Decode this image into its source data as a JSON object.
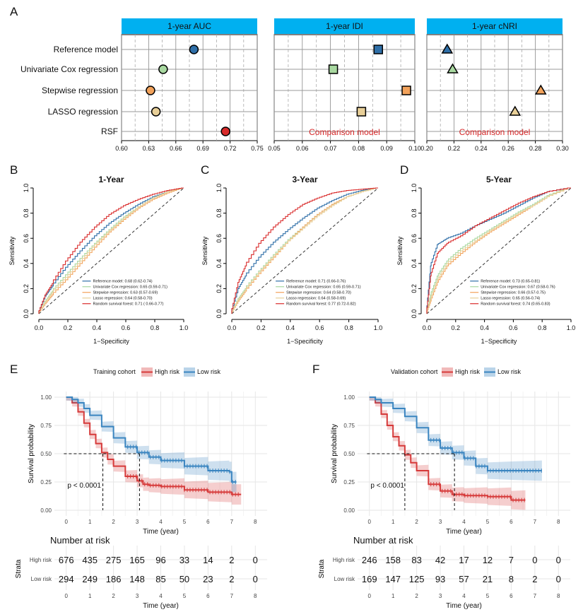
{
  "panel_letters": [
    "A",
    "B",
    "C",
    "D",
    "E",
    "F"
  ],
  "colors": {
    "reference": "#2f6fa8",
    "cox": "#a8d8a0",
    "stepwise": "#f2a25b",
    "lasso": "#e8cf98",
    "rsf": "#d92b2b",
    "header": "#00b0f0",
    "high_risk": "#d63a3a",
    "low_risk": "#3a85c0",
    "comparison_text": "#d62728"
  },
  "comparison_label": "Comparison model",
  "chart_data": [
    {
      "type": "scatter",
      "title": "1-year AUC",
      "categories": [
        "Reference model",
        "Univariate Cox regression",
        "Stepwise regression",
        "LASSO regression",
        "RSF"
      ],
      "values": [
        0.68,
        0.646,
        0.632,
        0.638,
        0.715
      ],
      "marker": "circle",
      "xlim": [
        0.6,
        0.75
      ],
      "xticks": [
        "0.60",
        "0.63",
        "0.66",
        "0.69",
        "0.72",
        "0.75"
      ]
    },
    {
      "type": "scatter",
      "title": "1-year IDI",
      "categories": [
        "Reference model",
        "Univariate Cox regression",
        "Stepwise regression",
        "LASSO regression",
        "RSF"
      ],
      "values": [
        0.087,
        0.071,
        0.097,
        0.081,
        null
      ],
      "marker": "square",
      "xlim": [
        0.05,
        0.1
      ],
      "xticks": [
        "0.05",
        "0.06",
        "0.07",
        "0.08",
        "0.09",
        "0.10"
      ],
      "annotation": "Comparison model"
    },
    {
      "type": "scatter",
      "title": "1-year cNRI",
      "categories": [
        "Reference model",
        "Univariate Cox regression",
        "Stepwise regression",
        "LASSO regression",
        "RSF"
      ],
      "values": [
        0.215,
        0.219,
        0.284,
        0.265,
        null
      ],
      "marker": "triangle",
      "xlim": [
        0.2,
        0.3
      ],
      "xticks": [
        "0.20",
        "0.22",
        "0.24",
        "0.26",
        "0.28",
        "0.30"
      ],
      "annotation": "Comparison model"
    },
    {
      "type": "line",
      "title": "1-Year",
      "xlabel": "1−Specificity",
      "ylabel": "Sensitivity",
      "xlim": [
        0,
        1
      ],
      "ylim": [
        0,
        1
      ],
      "ticks": [
        "0.0",
        "0.2",
        "0.4",
        "0.6",
        "0.8",
        "1.0"
      ],
      "legend": [
        "Reference model: 0.68 (0.62-0.74)",
        "Univariate Cox regression: 0.65 (0.59-0.71)",
        "Stepwise regression: 0.63 (0.57-0.69)",
        "Lasso regression: 0.64 (0.58-0.70)",
        "Random survival forest: 0.71 ( 0.66-0.77)"
      ],
      "series": [
        {
          "name": "Reference model",
          "x": [
            0,
            0.05,
            0.1,
            0.2,
            0.3,
            0.4,
            0.5,
            0.6,
            0.7,
            0.8,
            0.9,
            1.0
          ],
          "y": [
            0,
            0.14,
            0.22,
            0.37,
            0.5,
            0.62,
            0.72,
            0.8,
            0.87,
            0.93,
            0.97,
            1.0
          ]
        },
        {
          "name": "Univariate Cox regression",
          "x": [
            0,
            0.05,
            0.1,
            0.2,
            0.3,
            0.4,
            0.5,
            0.6,
            0.7,
            0.8,
            0.9,
            1.0
          ],
          "y": [
            0,
            0.1,
            0.18,
            0.31,
            0.44,
            0.56,
            0.67,
            0.77,
            0.85,
            0.92,
            0.97,
            1.0
          ]
        },
        {
          "name": "Stepwise regression",
          "x": [
            0,
            0.05,
            0.1,
            0.2,
            0.3,
            0.4,
            0.5,
            0.6,
            0.7,
            0.8,
            0.9,
            1.0
          ],
          "y": [
            0,
            0.08,
            0.15,
            0.27,
            0.4,
            0.53,
            0.65,
            0.75,
            0.84,
            0.91,
            0.96,
            1.0
          ]
        },
        {
          "name": "Lasso regression",
          "x": [
            0,
            0.05,
            0.1,
            0.2,
            0.3,
            0.4,
            0.5,
            0.6,
            0.7,
            0.8,
            0.9,
            1.0
          ],
          "y": [
            0,
            0.09,
            0.17,
            0.29,
            0.42,
            0.55,
            0.66,
            0.76,
            0.85,
            0.92,
            0.97,
            1.0
          ]
        },
        {
          "name": "Random survival forest",
          "x": [
            0,
            0.05,
            0.1,
            0.2,
            0.3,
            0.4,
            0.5,
            0.6,
            0.7,
            0.8,
            0.9,
            1.0
          ],
          "y": [
            0,
            0.15,
            0.24,
            0.42,
            0.57,
            0.69,
            0.79,
            0.86,
            0.91,
            0.95,
            0.98,
            1.0
          ]
        }
      ]
    },
    {
      "type": "line",
      "title": "3-Year",
      "xlabel": "1−Specificity",
      "ylabel": "Sensitivity",
      "xlim": [
        0,
        1
      ],
      "ylim": [
        0,
        1
      ],
      "ticks": [
        "0.0",
        "0.2",
        "0.4",
        "0.6",
        "0.8",
        "1.0"
      ],
      "legend": [
        "Reference model: 0.71 (0.66-0.76)",
        "Univariate Cox regression: 0.65 (0.59-0.71)",
        "Stepwise regression: 0.64 (0.58-0.70)",
        "Lasso regression: 0.64 (0.58-0.69)",
        "Random survival forest: 0.77 (0.72-0.82)"
      ],
      "series": [
        {
          "name": "Reference model",
          "x": [
            0,
            0.05,
            0.1,
            0.2,
            0.3,
            0.4,
            0.5,
            0.6,
            0.7,
            0.8,
            0.9,
            1.0
          ],
          "y": [
            0,
            0.2,
            0.3,
            0.45,
            0.57,
            0.67,
            0.76,
            0.84,
            0.9,
            0.95,
            0.98,
            1.0
          ]
        },
        {
          "name": "Univariate Cox regression",
          "x": [
            0,
            0.05,
            0.1,
            0.2,
            0.3,
            0.4,
            0.5,
            0.6,
            0.7,
            0.8,
            0.9,
            1.0
          ],
          "y": [
            0,
            0.12,
            0.2,
            0.34,
            0.47,
            0.59,
            0.69,
            0.79,
            0.87,
            0.93,
            0.97,
            1.0
          ]
        },
        {
          "name": "Stepwise regression",
          "x": [
            0,
            0.05,
            0.1,
            0.2,
            0.3,
            0.4,
            0.5,
            0.6,
            0.7,
            0.8,
            0.9,
            1.0
          ],
          "y": [
            0,
            0.1,
            0.18,
            0.32,
            0.45,
            0.58,
            0.69,
            0.79,
            0.87,
            0.93,
            0.97,
            1.0
          ]
        },
        {
          "name": "Lasso regression",
          "x": [
            0,
            0.05,
            0.1,
            0.2,
            0.3,
            0.4,
            0.5,
            0.6,
            0.7,
            0.8,
            0.9,
            1.0
          ],
          "y": [
            0,
            0.11,
            0.19,
            0.33,
            0.46,
            0.58,
            0.68,
            0.78,
            0.86,
            0.93,
            0.97,
            1.0
          ]
        },
        {
          "name": "Random survival forest",
          "x": [
            0,
            0.05,
            0.1,
            0.2,
            0.3,
            0.4,
            0.5,
            0.6,
            0.7,
            0.8,
            0.9,
            1.0
          ],
          "y": [
            0,
            0.25,
            0.38,
            0.56,
            0.69,
            0.79,
            0.87,
            0.92,
            0.96,
            0.98,
            0.99,
            1.0
          ]
        }
      ]
    },
    {
      "type": "line",
      "title": "5-Year",
      "xlabel": "1−Specificity",
      "ylabel": "Sensitivity",
      "xlim": [
        0,
        1
      ],
      "ylim": [
        0,
        1
      ],
      "ticks": [
        "0.0",
        "0.2",
        "0.4",
        "0.6",
        "0.8",
        "1.0"
      ],
      "legend": [
        "Reference model: 0.73 (0.65-0.81)",
        "Univariate Cox regression: 0.67 (0.58-0.76)",
        "Stepwise regression: 0.66 (0.57-0.75)",
        "Lasso regression: 0.65 (0.56-0.74)",
        "Random survival forest: 0.74 (0.65-0.83)"
      ],
      "series": [
        {
          "name": "Reference model",
          "x": [
            0,
            0.03,
            0.08,
            0.15,
            0.25,
            0.35,
            0.45,
            0.55,
            0.65,
            0.75,
            0.85,
            1.0
          ],
          "y": [
            0,
            0.38,
            0.55,
            0.6,
            0.64,
            0.7,
            0.75,
            0.8,
            0.86,
            0.92,
            0.97,
            1.0
          ]
        },
        {
          "name": "Univariate Cox regression",
          "x": [
            0,
            0.03,
            0.08,
            0.15,
            0.25,
            0.35,
            0.45,
            0.55,
            0.65,
            0.75,
            0.85,
            1.0
          ],
          "y": [
            0,
            0.15,
            0.3,
            0.42,
            0.52,
            0.6,
            0.67,
            0.74,
            0.81,
            0.87,
            0.94,
            1.0
          ]
        },
        {
          "name": "Stepwise regression",
          "x": [
            0,
            0.03,
            0.08,
            0.15,
            0.25,
            0.35,
            0.45,
            0.55,
            0.65,
            0.75,
            0.85,
            1.0
          ],
          "y": [
            0,
            0.1,
            0.25,
            0.38,
            0.48,
            0.57,
            0.65,
            0.72,
            0.79,
            0.86,
            0.93,
            1.0
          ]
        },
        {
          "name": "Lasso regression",
          "x": [
            0,
            0.03,
            0.08,
            0.15,
            0.25,
            0.35,
            0.45,
            0.55,
            0.65,
            0.75,
            0.85,
            1.0
          ],
          "y": [
            0,
            0.12,
            0.27,
            0.4,
            0.5,
            0.58,
            0.66,
            0.73,
            0.8,
            0.86,
            0.93,
            1.0
          ]
        },
        {
          "name": "Random survival forest",
          "x": [
            0,
            0.03,
            0.08,
            0.15,
            0.25,
            0.35,
            0.45,
            0.55,
            0.65,
            0.75,
            0.85,
            1.0
          ],
          "y": [
            0,
            0.3,
            0.48,
            0.56,
            0.62,
            0.7,
            0.76,
            0.82,
            0.88,
            0.93,
            0.97,
            1.0
          ]
        }
      ]
    },
    {
      "type": "line",
      "title": "Training cohort",
      "xlabel": "Time (year)",
      "ylabel": "Survival probability",
      "xlim": [
        -0.5,
        8.5
      ],
      "ylim": [
        0,
        1
      ],
      "xticks": [
        "0",
        "1",
        "2",
        "3",
        "4",
        "5",
        "6",
        "7",
        "8"
      ],
      "yticks": [
        "0.00",
        "0.25",
        "0.50",
        "0.75",
        "1.00"
      ],
      "legend_title": "Training cohort",
      "legend": [
        "High risk",
        "Low risk"
      ],
      "pvalue": "p < 0.0001",
      "medians": [
        1.55,
        3.1
      ],
      "series": [
        {
          "name": "High risk",
          "x": [
            0,
            0.25,
            0.5,
            0.75,
            1.0,
            1.25,
            1.5,
            1.75,
            2.0,
            2.5,
            3.0,
            3.25,
            3.5,
            4.0,
            5.0,
            6.0,
            7.0,
            7.4
          ],
          "y": [
            1.0,
            0.95,
            0.87,
            0.77,
            0.67,
            0.59,
            0.51,
            0.45,
            0.39,
            0.3,
            0.26,
            0.23,
            0.22,
            0.21,
            0.18,
            0.16,
            0.14,
            0.14
          ]
        },
        {
          "name": "Low risk",
          "x": [
            0,
            0.25,
            0.5,
            0.75,
            1.0,
            1.5,
            2.0,
            2.5,
            3.0,
            3.5,
            4.0,
            5.0,
            6.0,
            6.9,
            7.0,
            7.2
          ],
          "y": [
            1.0,
            0.98,
            0.95,
            0.9,
            0.84,
            0.74,
            0.64,
            0.56,
            0.51,
            0.47,
            0.44,
            0.39,
            0.35,
            0.34,
            0.25,
            0.25
          ]
        }
      ],
      "risk_table": {
        "title": "Number at risk",
        "strata_label": "Strata",
        "rows": [
          {
            "name": "High risk",
            "values": [
              "676",
              "435",
              "275",
              "165",
              "96",
              "33",
              "14",
              "2",
              "0"
            ]
          },
          {
            "name": "Low risk",
            "values": [
              "294",
              "249",
              "186",
              "148",
              "85",
              "50",
              "23",
              "2",
              "0"
            ]
          }
        ],
        "xlabel": "Time (year)",
        "xticks": [
          "0",
          "1",
          "2",
          "3",
          "4",
          "5",
          "6",
          "7",
          "8"
        ]
      }
    },
    {
      "type": "line",
      "title": "Validation cohort",
      "xlabel": "Time (year)",
      "ylabel": "Survival probability",
      "xlim": [
        -0.5,
        8.5
      ],
      "ylim": [
        0,
        1
      ],
      "xticks": [
        "0",
        "1",
        "2",
        "3",
        "4",
        "5",
        "6",
        "7",
        "8"
      ],
      "yticks": [
        "0.00",
        "0.25",
        "0.50",
        "0.75",
        "1.00"
      ],
      "legend_title": "Validation cohort",
      "legend": [
        "High risk",
        "Low risk"
      ],
      "pvalue": "p < 0.0001",
      "medians": [
        1.5,
        3.6
      ],
      "series": [
        {
          "name": "High risk",
          "x": [
            0,
            0.25,
            0.5,
            0.75,
            1.0,
            1.25,
            1.5,
            1.75,
            2.0,
            2.5,
            3.0,
            3.5,
            4.0,
            5.0,
            6.0,
            6.6
          ],
          "y": [
            1.0,
            0.95,
            0.85,
            0.75,
            0.65,
            0.57,
            0.49,
            0.42,
            0.35,
            0.23,
            0.17,
            0.14,
            0.13,
            0.12,
            0.09,
            0.09
          ]
        },
        {
          "name": "Low risk",
          "x": [
            0,
            0.25,
            0.5,
            1.0,
            1.5,
            2.0,
            2.5,
            3.0,
            3.5,
            4.0,
            4.5,
            5.0,
            6.0,
            7.3
          ],
          "y": [
            1.0,
            0.98,
            0.95,
            0.9,
            0.83,
            0.73,
            0.62,
            0.55,
            0.51,
            0.46,
            0.39,
            0.35,
            0.35,
            0.35
          ]
        }
      ],
      "risk_table": {
        "title": "Number at risk",
        "strata_label": "Strata",
        "rows": [
          {
            "name": "High risk",
            "values": [
              "246",
              "158",
              "83",
              "42",
              "17",
              "12",
              "7",
              "0",
              "0"
            ]
          },
          {
            "name": "Low risk",
            "values": [
              "169",
              "147",
              "125",
              "93",
              "57",
              "21",
              "8",
              "2",
              "0"
            ]
          }
        ],
        "xlabel": "Time (year)",
        "xticks": [
          "0",
          "1",
          "2",
          "3",
          "4",
          "5",
          "6",
          "7",
          "8"
        ]
      }
    }
  ]
}
